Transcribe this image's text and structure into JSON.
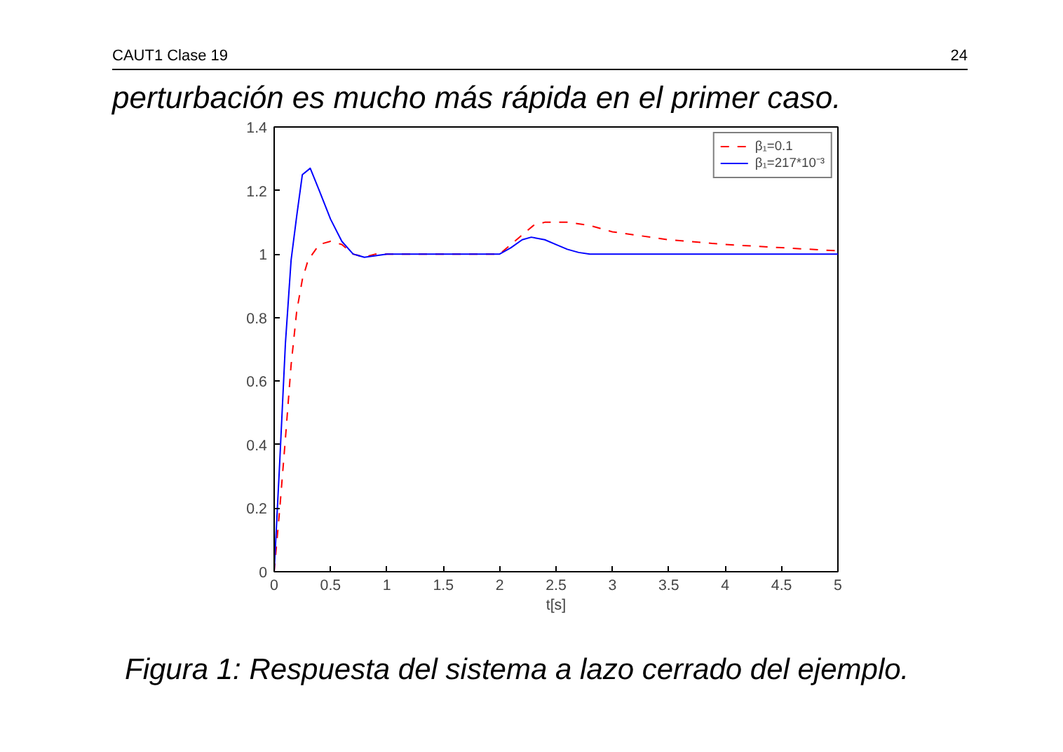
{
  "chart_data": {
    "type": "line",
    "xlabel": "t[s]",
    "annotations": [
      "CAUT1 Clase 19",
      "24",
      "perturbación es mucho más rápida en el primer caso.",
      "Figura 1: Respuesta del sistema a lazo cerrado del ejemplo."
    ],
    "xlim": [
      0,
      5
    ],
    "ylim": [
      0,
      1.4
    ],
    "xticks": [
      0,
      0.5,
      1,
      1.5,
      2,
      2.5,
      3,
      3.5,
      4,
      4.5,
      5
    ],
    "yticks": [
      0,
      0.2,
      0.4,
      0.6,
      0.8,
      1,
      1.2,
      1.4
    ],
    "grid": false,
    "legend": "top right",
    "series": [
      {
        "name": "β₁=0.1",
        "color": "#ff0000",
        "line_style": "dashed",
        "x": [
          0,
          0.05,
          0.1,
          0.15,
          0.2,
          0.25,
          0.3,
          0.4,
          0.5,
          0.6,
          0.7,
          0.8,
          0.9,
          1.0,
          2.0,
          2.1,
          2.2,
          2.3,
          2.4,
          2.5,
          2.6,
          2.8,
          3.0,
          3.5,
          4.0,
          4.5,
          5.0
        ],
        "values": [
          0,
          0.2,
          0.42,
          0.65,
          0.82,
          0.92,
          0.98,
          1.03,
          1.04,
          1.03,
          1.0,
          0.99,
          1.0,
          1.0,
          1.0,
          1.03,
          1.06,
          1.09,
          1.1,
          1.1,
          1.1,
          1.09,
          1.07,
          1.045,
          1.03,
          1.02,
          1.01
        ]
      },
      {
        "name": "β₁=217*10⁻³",
        "color": "#0000ff",
        "line_style": "solid",
        "x": [
          0,
          0.05,
          0.1,
          0.15,
          0.2,
          0.25,
          0.32,
          0.4,
          0.5,
          0.6,
          0.7,
          0.8,
          0.9,
          1.0,
          2.0,
          2.1,
          2.2,
          2.28,
          2.4,
          2.5,
          2.6,
          2.7,
          2.8,
          5.0
        ],
        "values": [
          0,
          0.35,
          0.72,
          0.98,
          1.12,
          1.25,
          1.27,
          1.2,
          1.11,
          1.04,
          1.0,
          0.99,
          0.995,
          1.0,
          1.0,
          1.02,
          1.045,
          1.053,
          1.045,
          1.03,
          1.015,
          1.005,
          1.0,
          1.0
        ]
      }
    ]
  }
}
